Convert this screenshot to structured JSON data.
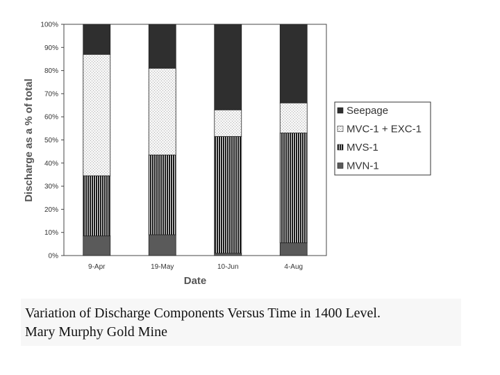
{
  "chart_data": {
    "type": "bar",
    "stacked": true,
    "percent": true,
    "categories": [
      "9-Apr",
      "19-May",
      "10-Jun",
      "4-Aug"
    ],
    "series": [
      {
        "name": "MVN-1",
        "values": [
          8.5,
          9,
          1,
          5.5
        ]
      },
      {
        "name": "MVS-1",
        "values": [
          26,
          34.5,
          50.5,
          47.5
        ]
      },
      {
        "name": "MVC-1 + EXC-1",
        "values": [
          52.5,
          37.5,
          11.5,
          13
        ]
      },
      {
        "name": "Seepage",
        "values": [
          13,
          19,
          37,
          34
        ]
      }
    ],
    "xlabel": "Date",
    "ylabel": "Discharge as a % of total",
    "ylim": [
      0,
      100
    ],
    "yticks": [
      "0%",
      "10%",
      "20%",
      "30%",
      "40%",
      "50%",
      "60%",
      "70%",
      "80%",
      "90%",
      "100%"
    ],
    "legend": {
      "position": "right",
      "items": [
        "Seepage",
        "MVC-1 + EXC-1",
        "MVS-1",
        "MVN-1"
      ]
    },
    "colors": {
      "MVN-1": "#555555",
      "MVS-1": "#222222",
      "MVC-1 + EXC-1": "#eeeeee",
      "Seepage": "#2b2b2b"
    },
    "grid": false
  },
  "caption": {
    "line1": "Variation of Discharge Components Versus Time in 1400 Level.",
    "line2": "Mary Murphy Gold Mine"
  }
}
